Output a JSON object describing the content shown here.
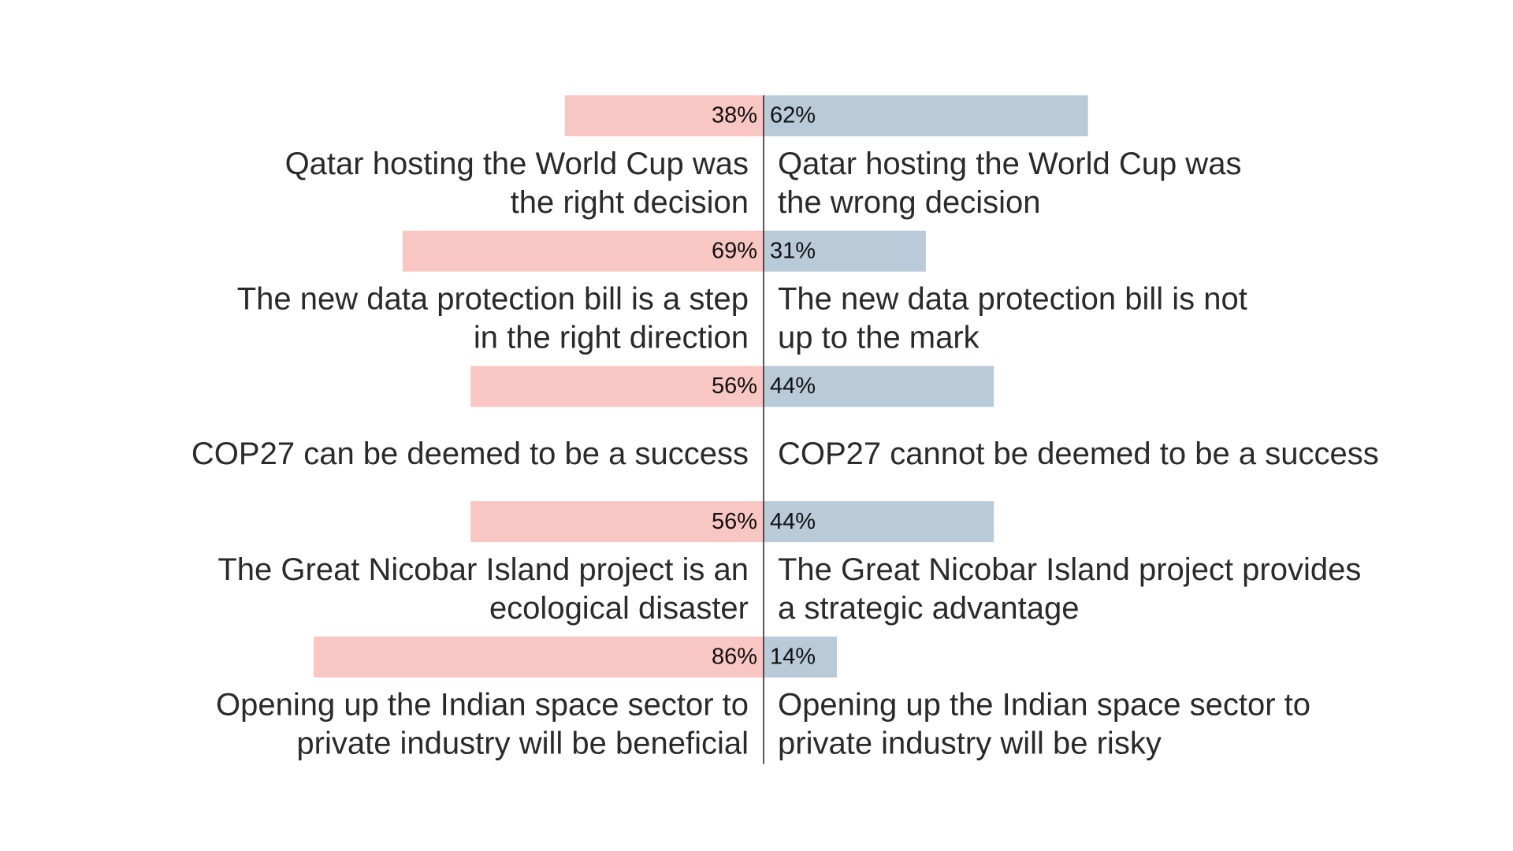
{
  "chart_data": {
    "type": "diverging_bar",
    "series": [
      {
        "color": "#f9c7c3",
        "values": [
          38,
          69,
          56,
          56,
          86
        ],
        "value_labels": [
          "38%",
          "69%",
          "56%",
          "56%",
          "86%"
        ],
        "statements": [
          [
            "Qatar hosting the World Cup was",
            "the right decision"
          ],
          [
            "The new data protection bill is a step",
            "in the right direction"
          ],
          [
            "COP27 can be deemed to be a success"
          ],
          [
            "The Great Nicobar Island project is an",
            "ecological disaster"
          ],
          [
            "Opening up the Indian space sector to",
            "private industry will be beneficial"
          ]
        ]
      },
      {
        "color": "#b9cad9",
        "values": [
          62,
          31,
          44,
          44,
          14
        ],
        "value_labels": [
          "62%",
          "31%",
          "44%",
          "44%",
          "14%"
        ],
        "statements": [
          [
            "Qatar hosting the World Cup was",
            "the wrong decision"
          ],
          [
            "The new data protection bill is not",
            "up to the mark"
          ],
          [
            "COP27 cannot be deemed to be a success"
          ],
          [
            "The Great Nicobar Island project provides",
            "a strategic advantage"
          ],
          [
            "Opening up the Indian space sector to",
            "private industry will be risky"
          ]
        ]
      }
    ]
  }
}
